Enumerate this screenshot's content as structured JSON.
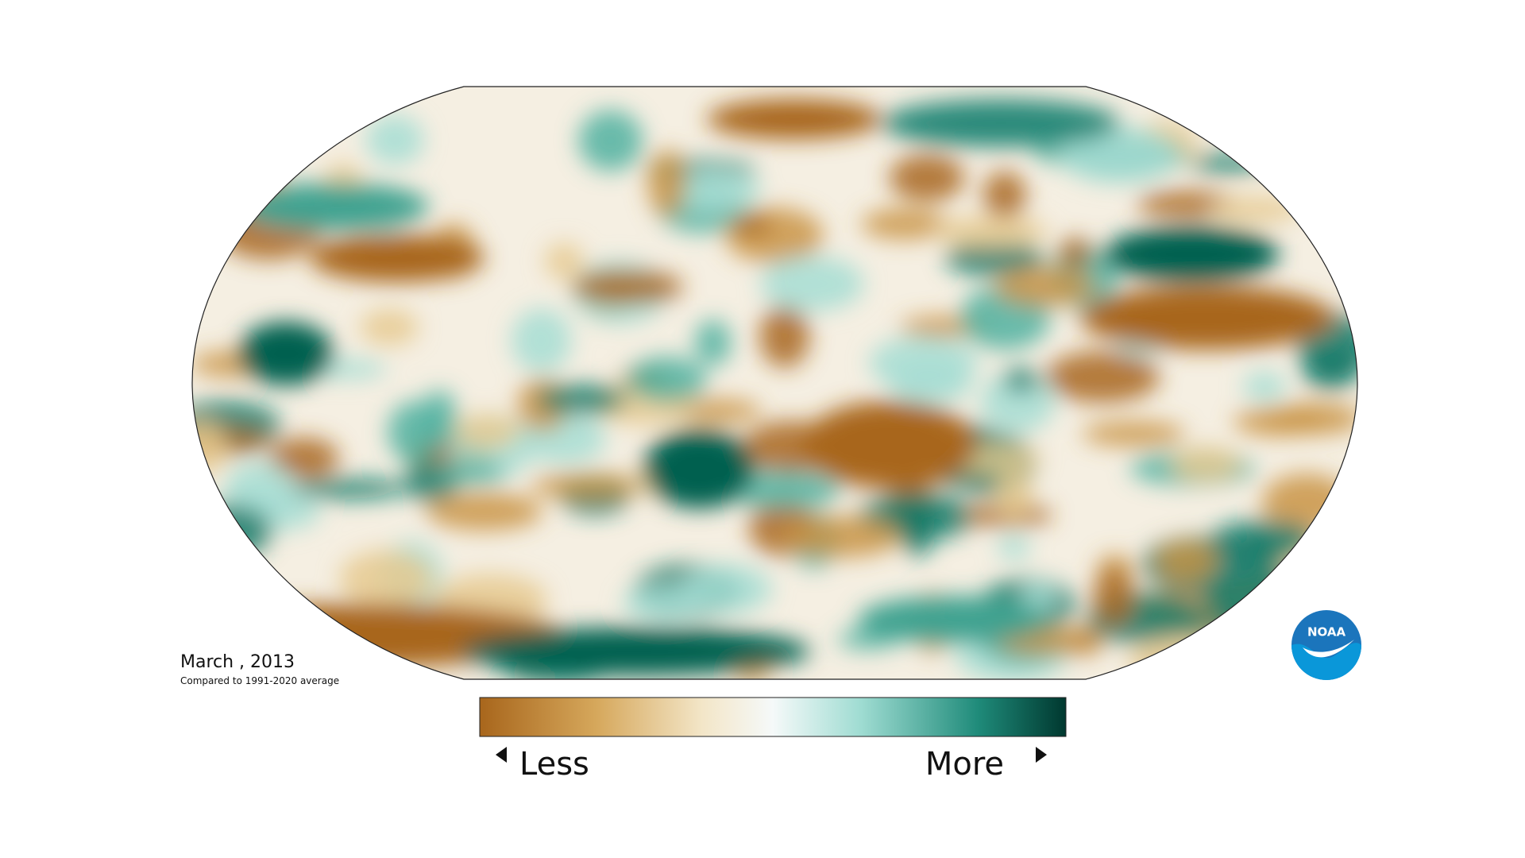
{
  "map": {
    "title": "March , 2013",
    "subtitle": "Compared to 1991-2020 average",
    "legend": {
      "low_label": "Less",
      "high_label": "More"
    },
    "logo": "NOAA"
  }
}
